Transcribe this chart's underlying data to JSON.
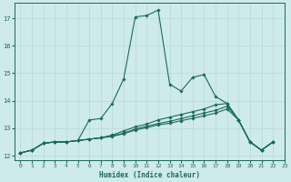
{
  "xlabel": "Humidex (Indice chaleur)",
  "background_color": "#ceeaea",
  "grid_color": "#b8d8d8",
  "line_color": "#1a6b5a",
  "xlim": [
    -0.5,
    23
  ],
  "ylim": [
    11.85,
    17.55
  ],
  "yticks": [
    12,
    13,
    14,
    15,
    16,
    17
  ],
  "xticks": [
    0,
    1,
    2,
    3,
    4,
    5,
    6,
    7,
    8,
    9,
    10,
    11,
    12,
    13,
    14,
    15,
    16,
    17,
    18,
    19,
    20,
    21,
    22,
    23
  ],
  "xdata": [
    0,
    1,
    2,
    3,
    4,
    5,
    6,
    7,
    8,
    9,
    10,
    11,
    12,
    13,
    14,
    15,
    16,
    17,
    18,
    19,
    20,
    21,
    22
  ],
  "y_main": [
    12.1,
    12.2,
    12.45,
    12.5,
    12.5,
    12.55,
    13.3,
    13.35,
    13.9,
    14.8,
    17.05,
    17.1,
    17.3,
    14.6,
    14.35,
    14.85,
    14.95,
    14.15,
    13.9,
    13.3,
    12.5,
    12.2,
    12.5
  ],
  "y_line2": [
    12.1,
    12.2,
    12.45,
    12.5,
    12.5,
    12.55,
    12.6,
    12.65,
    12.75,
    12.9,
    13.05,
    13.15,
    13.3,
    13.4,
    13.5,
    13.6,
    13.7,
    13.85,
    13.9,
    13.3,
    12.5,
    12.2,
    12.5
  ],
  "y_line3": [
    12.1,
    12.2,
    12.45,
    12.5,
    12.5,
    12.55,
    12.6,
    12.65,
    12.72,
    12.82,
    12.97,
    13.07,
    13.17,
    13.25,
    13.35,
    13.45,
    13.55,
    13.65,
    13.8,
    13.3,
    12.5,
    12.2,
    12.5
  ],
  "y_line4": [
    12.1,
    12.2,
    12.45,
    12.5,
    12.5,
    12.55,
    12.6,
    12.65,
    12.7,
    12.8,
    12.93,
    13.02,
    13.12,
    13.18,
    13.27,
    13.36,
    13.45,
    13.55,
    13.7,
    13.3,
    12.5,
    12.2,
    12.5
  ]
}
